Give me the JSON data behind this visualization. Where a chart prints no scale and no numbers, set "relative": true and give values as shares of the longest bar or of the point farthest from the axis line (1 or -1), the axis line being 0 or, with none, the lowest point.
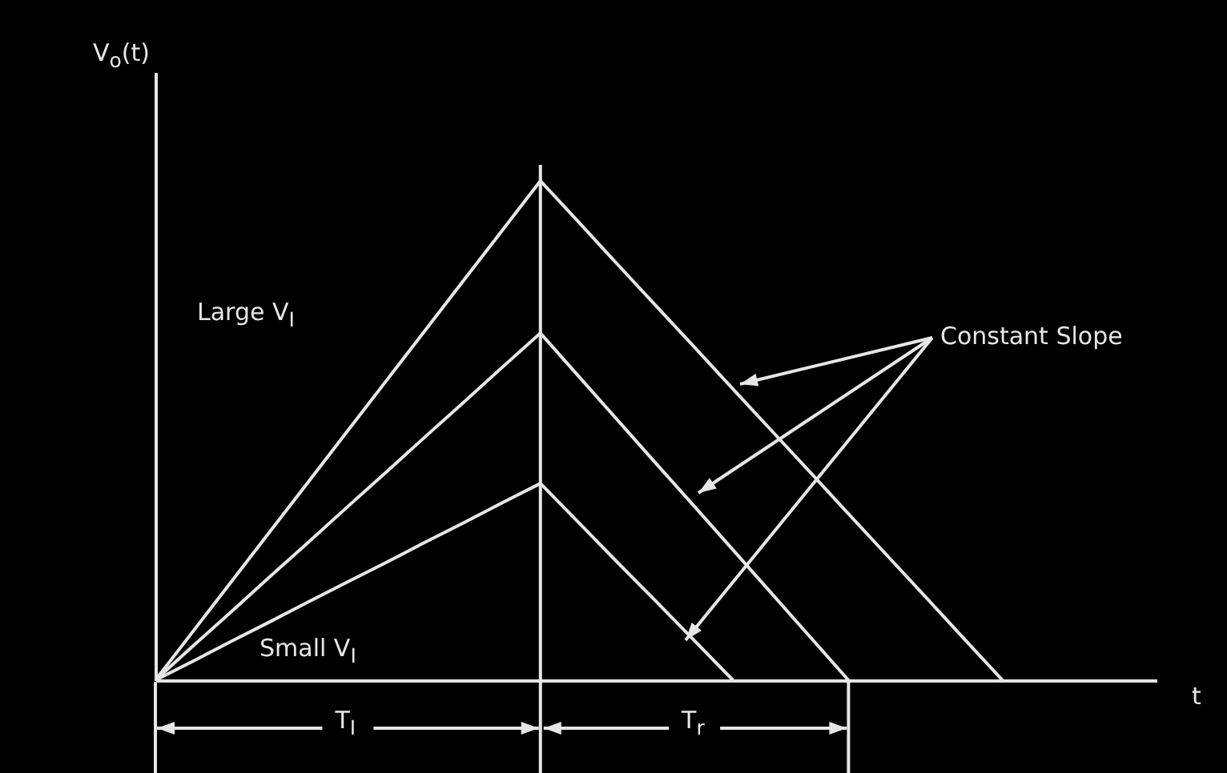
{
  "chart_data": {
    "type": "line",
    "relative": true,
    "xlabel": "t",
    "ylabel": "V$_{o}$(t)",
    "marker": "none",
    "line_style": "solid",
    "categories": [
      null,
      null,
      null,
      null,
      null,
      null,
      null,
      null,
      null,
      null,
      null,
      null,
      null,
      null,
      null,
      null,
      null,
      null,
      null,
      null,
      null,
      null,
      null,
      null,
      null,
      null,
      null
    ],
    "series": [
      {
        "color": "#e6e6e6",
        "values": [
          0,
          0.1,
          0.2,
          0.3,
          0.4,
          0.5,
          0.6,
          0.7,
          0.8,
          0.9,
          1,
          0.917,
          0.833,
          0.75,
          0.667,
          0.583,
          0.5,
          0.417,
          0.333,
          0.25,
          0.167,
          0.083,
          0,
          null,
          null,
          null,
          null
        ]
      },
      {
        "color": "#e6e6e6",
        "values": [
          0,
          0.07,
          0.139,
          0.209,
          0.278,
          0.348,
          0.417,
          0.487,
          0.556,
          0.626,
          0.695,
          0.608,
          0.521,
          0.434,
          0.348,
          0.261,
          0.174,
          0.087,
          0,
          null,
          null,
          null,
          null,
          null,
          null,
          null,
          null
        ]
      },
      {
        "color": "#e6e6e6",
        "values": [
          0,
          0.039,
          0.079,
          0.118,
          0.158,
          0.197,
          0.236,
          0.276,
          0.315,
          0.355,
          0.394,
          0.315,
          0.236,
          0.158,
          0.079,
          0,
          null,
          null,
          null,
          null,
          null,
          null,
          null,
          null,
          null,
          null,
          null
        ]
      }
    ],
    "annotations": [
      "Large V$_{I}$",
      "Small V$_{I}$",
      "Constant Slope",
      "T$_{I}$",
      "T$_{r}$"
    ]
  }
}
